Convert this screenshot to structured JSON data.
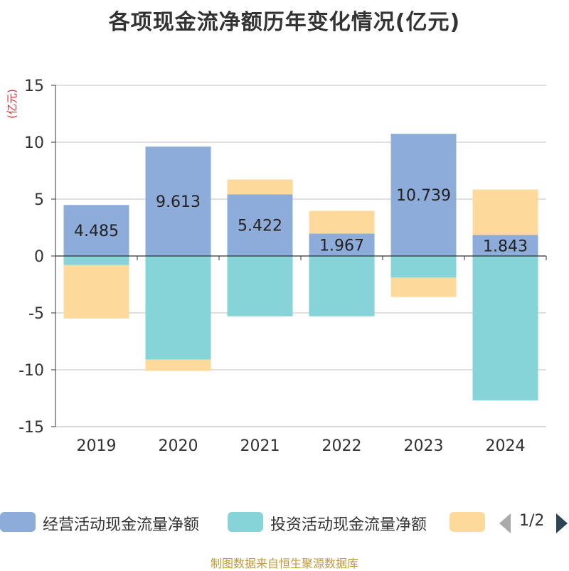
{
  "title": "各项现金流净额历年变化情况(亿元)",
  "footer": "制图数据来自恒生聚源数据库",
  "pager": {
    "text": "1/2"
  },
  "legend": [
    {
      "name": "经营活动现金流量净额",
      "color": "#8eacd9"
    },
    {
      "name": "投资活动现金流量净额",
      "color": "#86d4d8"
    },
    {
      "name": "",
      "color": "#fdd99b"
    }
  ],
  "chart_data": {
    "type": "bar",
    "stacked": true,
    "ylabel": "(亿元)",
    "ylim": [
      -15,
      15
    ],
    "yticks": [
      15,
      10,
      5,
      0,
      -5,
      -10,
      -15
    ],
    "categories": [
      "2019",
      "2020",
      "2021",
      "2022",
      "2023",
      "2024"
    ],
    "series": [
      {
        "name": "经营活动现金流量净额",
        "color": "#8eacd9",
        "values": [
          4.485,
          9.613,
          5.422,
          1.967,
          10.739,
          1.843
        ],
        "labels": [
          "4.485",
          "9.613",
          "5.422",
          "1.967",
          "10.739",
          "1.843"
        ]
      },
      {
        "name": "投资活动现金流量净额",
        "color": "#86d4d8",
        "values": [
          -0.8,
          -9.1,
          -5.3,
          -5.3,
          -1.9,
          -12.7
        ]
      },
      {
        "name": "",
        "color": "#fdd99b",
        "values": [
          -4.7,
          -1.0,
          1.3,
          2.0,
          -1.7,
          4.0
        ]
      }
    ]
  }
}
